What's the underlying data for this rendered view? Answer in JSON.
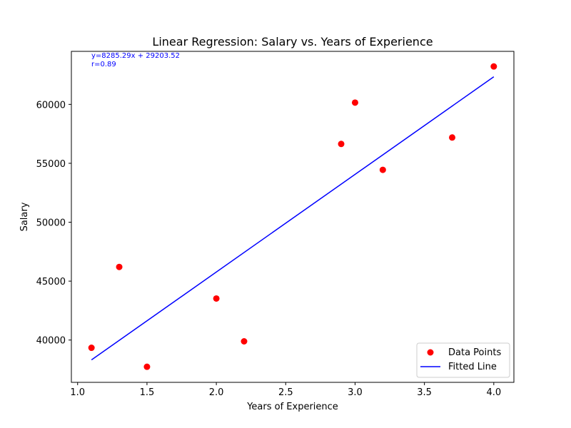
{
  "chart_data": {
    "type": "scatter",
    "title": "Linear Regression: Salary vs. Years of Experience",
    "xlabel": "Years of Experience",
    "ylabel": "Salary",
    "xlim": [
      0.955,
      4.145
    ],
    "ylim": [
      36410,
      64500
    ],
    "x_ticks": [
      1.0,
      1.5,
      2.0,
      2.5,
      3.0,
      3.5,
      4.0
    ],
    "x_tick_labels": [
      "1.0",
      "1.5",
      "2.0",
      "2.5",
      "3.0",
      "3.5",
      "4.0"
    ],
    "y_ticks": [
      40000,
      45000,
      50000,
      55000,
      60000
    ],
    "y_tick_labels": [
      "40000",
      "45000",
      "50000",
      "55000",
      "60000"
    ],
    "grid": false,
    "legend_position": "bottom-right",
    "series": [
      {
        "name": "Data Points",
        "kind": "scatter",
        "color": "#ff0000",
        "points": [
          {
            "x": 1.1,
            "y": 39343
          },
          {
            "x": 1.3,
            "y": 46205
          },
          {
            "x": 1.5,
            "y": 37731
          },
          {
            "x": 2.0,
            "y": 43525
          },
          {
            "x": 2.2,
            "y": 39891
          },
          {
            "x": 2.9,
            "y": 56642
          },
          {
            "x": 3.0,
            "y": 60150
          },
          {
            "x": 3.2,
            "y": 54445
          },
          {
            "x": 3.7,
            "y": 57189
          },
          {
            "x": 4.0,
            "y": 63218
          }
        ]
      },
      {
        "name": "Fitted Line",
        "kind": "line",
        "color": "#0000ff",
        "slope": 8285.29,
        "intercept": 29203.52,
        "x_range": [
          1.1,
          4.0
        ]
      }
    ],
    "annotations": [
      "y=8285.29x + 29203.52",
      "r=0.89"
    ],
    "annotation_color": "#0000ff"
  }
}
